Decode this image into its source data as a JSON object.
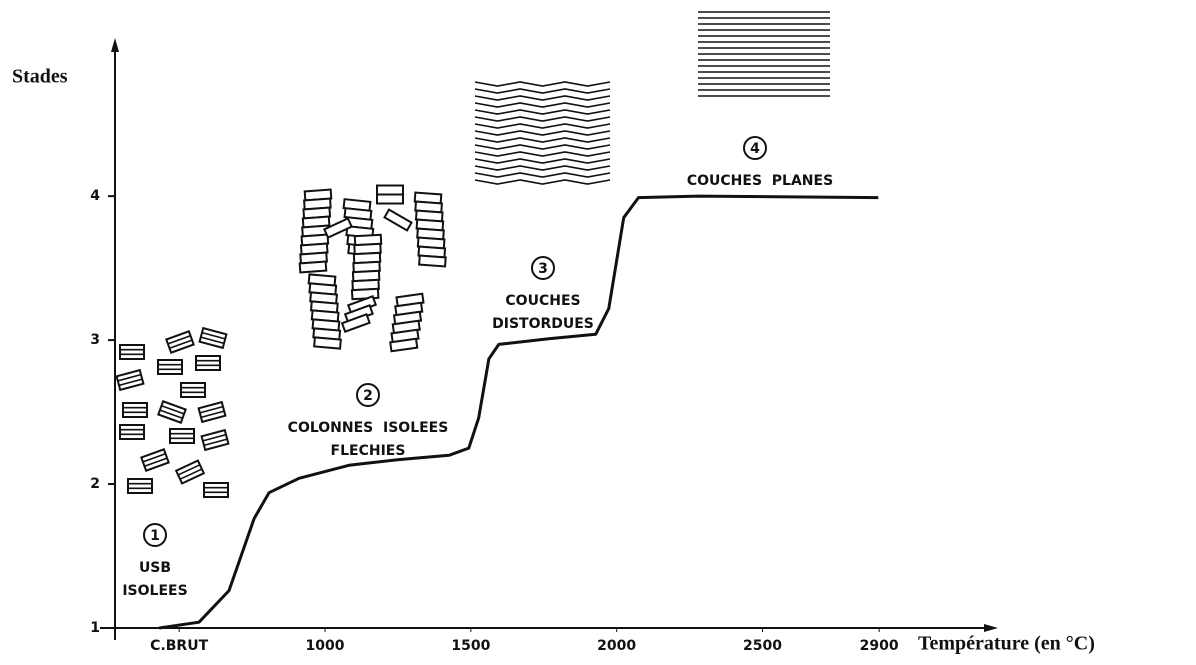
{
  "chart_data": {
    "type": "line",
    "y_label": "Stades",
    "x_label": "Température (en °C)",
    "x": [
      432,
      568,
      671,
      757,
      808,
      911,
      1082,
      1253,
      1425,
      1493,
      1527,
      1562,
      1596,
      1767,
      1928,
      1973,
      2024,
      2075,
      2280,
      2897
    ],
    "series": [
      {
        "color": "#111111",
        "values": [
          1.0,
          1.04,
          1.26,
          1.76,
          1.94,
          2.04,
          2.13,
          2.17,
          2.2,
          2.25,
          2.46,
          2.87,
          2.97,
          3.01,
          3.04,
          3.22,
          3.85,
          3.99,
          4.0,
          3.99
        ]
      }
    ],
    "xlim": [
      280,
      3280
    ],
    "ylim": [
      1,
      5.05
    ],
    "xticks": [
      {
        "value": 500,
        "label": "C.BRUT"
      },
      1000,
      1500,
      2000,
      2500,
      2900
    ],
    "yticks": [
      1,
      2,
      3,
      4
    ],
    "annotations": [
      {
        "number": "1",
        "lines": [
          "USB",
          "ISOLEES"
        ]
      },
      {
        "number": "2",
        "lines": [
          "COLONNES  ISOLEES",
          "FLECHIES"
        ]
      },
      {
        "number": "3",
        "lines": [
          "COUCHES",
          "DISTORDUES"
        ]
      },
      {
        "number": "4",
        "lines": [
          "COUCHES  PLANES"
        ]
      }
    ]
  }
}
